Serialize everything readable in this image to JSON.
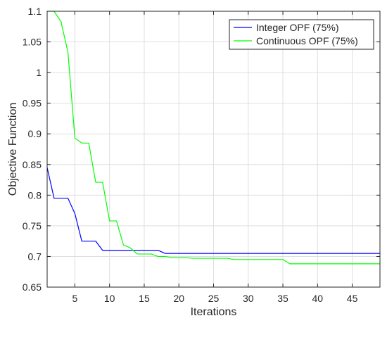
{
  "chart_data": {
    "type": "line",
    "title": "",
    "xlabel": "Iterations",
    "ylabel": "Objective Function",
    "xlim": [
      1,
      49
    ],
    "ylim": [
      0.65,
      1.1
    ],
    "xticks": [
      5,
      10,
      15,
      20,
      25,
      30,
      35,
      40,
      45
    ],
    "xtick_labels": [
      "5",
      "10",
      "15",
      "20",
      "25",
      "30",
      "35",
      "40",
      "45"
    ],
    "yticks": [
      0.65,
      0.7,
      0.75,
      0.8,
      0.85,
      0.9,
      0.95,
      1,
      1.05,
      1.1
    ],
    "ytick_labels": [
      "0.65",
      "0.7",
      "0.75",
      "0.8",
      "0.85",
      "0.9",
      "0.95",
      "1",
      "1.05",
      "1.1"
    ],
    "grid": true,
    "legend_position": "top-right",
    "series": [
      {
        "name": "Integer OPF (75%)",
        "color": "#0000ff",
        "x": [
          1,
          2,
          3,
          4,
          5,
          6,
          7,
          8,
          9,
          10,
          11,
          12,
          13,
          14,
          15,
          16,
          17,
          18,
          19,
          20,
          21,
          22,
          23,
          24,
          25,
          26,
          27,
          28,
          29,
          30,
          31,
          32,
          33,
          34,
          35,
          36,
          37,
          38,
          39,
          40,
          41,
          42,
          43,
          44,
          45,
          46,
          47,
          48,
          49
        ],
        "y": [
          0.845,
          0.795,
          0.795,
          0.795,
          0.77,
          0.725,
          0.725,
          0.725,
          0.71,
          0.71,
          0.71,
          0.71,
          0.71,
          0.71,
          0.71,
          0.71,
          0.71,
          0.705,
          0.705,
          0.705,
          0.705,
          0.705,
          0.705,
          0.705,
          0.705,
          0.705,
          0.705,
          0.705,
          0.705,
          0.705,
          0.705,
          0.705,
          0.705,
          0.705,
          0.705,
          0.705,
          0.705,
          0.705,
          0.705,
          0.705,
          0.705,
          0.705,
          0.705,
          0.705,
          0.705,
          0.705,
          0.705,
          0.705,
          0.705
        ]
      },
      {
        "name": "Continuous OPF (75%)",
        "color": "#00ff00",
        "x": [
          1,
          2,
          3,
          4,
          5,
          6,
          7,
          8,
          9,
          10,
          11,
          12,
          13,
          14,
          15,
          16,
          17,
          18,
          19,
          20,
          21,
          22,
          23,
          24,
          25,
          26,
          27,
          28,
          29,
          30,
          31,
          32,
          33,
          34,
          35,
          36,
          37,
          38,
          39,
          40,
          41,
          42,
          43,
          44,
          45,
          46,
          47,
          48,
          49
        ],
        "y": [
          1.1,
          1.1,
          1.083,
          1.033,
          0.893,
          0.885,
          0.885,
          0.821,
          0.821,
          0.758,
          0.758,
          0.719,
          0.714,
          0.704,
          0.704,
          0.704,
          0.7,
          0.7,
          0.698,
          0.698,
          0.698,
          0.697,
          0.697,
          0.697,
          0.697,
          0.697,
          0.697,
          0.695,
          0.695,
          0.695,
          0.695,
          0.695,
          0.695,
          0.695,
          0.695,
          0.688,
          0.688,
          0.688,
          0.688,
          0.688,
          0.688,
          0.688,
          0.688,
          0.688,
          0.688,
          0.688,
          0.688,
          0.688,
          0.688
        ]
      }
    ]
  }
}
